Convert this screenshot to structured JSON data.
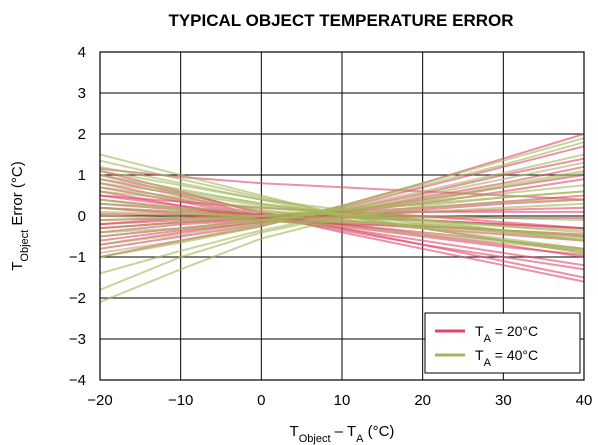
{
  "chart_data": {
    "type": "line",
    "title": "TYPICAL OBJECT TEMPERATURE ERROR",
    "xlabel": {
      "main": "T",
      "sub1": "Object",
      "mid": " – T",
      "sub2": "A",
      "unit": " (°C)"
    },
    "ylabel": {
      "main": "T",
      "sub": "Object",
      "rest": " Error (°C)"
    },
    "xlim": [
      -20,
      40
    ],
    "ylim": [
      -4,
      4
    ],
    "xticks": [
      "−20",
      "−10",
      "0",
      "10",
      "20",
      "30",
      "40"
    ],
    "yticks": [
      "−4",
      "−3",
      "−2",
      "−1",
      "0",
      "1",
      "2",
      "3",
      "4"
    ],
    "grid": true,
    "legend_position": "bottom-right",
    "colors": {
      "ta20": "#e0476b",
      "ta40": "#a3b75a"
    },
    "legend": [
      {
        "key": "ta20",
        "main": "T",
        "sub": "A",
        "rest": " = 20°C"
      },
      {
        "key": "ta40",
        "main": "T",
        "sub": "A",
        "rest": " = 40°C"
      }
    ],
    "x": [
      -20,
      -10,
      0,
      10,
      20,
      30,
      40
    ],
    "series_groups": [
      {
        "key": "ta20",
        "lines": [
          [
            1.0,
            0.55,
            0.1,
            -0.3,
            -0.7,
            -1.1,
            -1.5
          ],
          [
            1.1,
            0.6,
            0.05,
            -0.4,
            -0.8,
            -1.2,
            -1.6
          ],
          [
            0.9,
            0.5,
            0.0,
            -0.35,
            -0.7,
            -1.0,
            -1.3
          ],
          [
            0.8,
            0.4,
            0.0,
            -0.3,
            -0.6,
            -0.9,
            -1.2
          ],
          [
            0.7,
            0.35,
            -0.05,
            -0.2,
            -0.45,
            -0.7,
            -1.0
          ],
          [
            0.6,
            0.25,
            -0.1,
            -0.25,
            -0.5,
            -0.75,
            -0.95
          ],
          [
            0.5,
            0.25,
            0.0,
            -0.2,
            -0.4,
            -0.6,
            -0.8
          ],
          [
            0.4,
            0.2,
            0.0,
            -0.15,
            -0.3,
            -0.45,
            -0.6
          ],
          [
            0.3,
            0.15,
            0.0,
            -0.1,
            -0.25,
            -0.35,
            -0.5
          ],
          [
            0.2,
            0.1,
            0.0,
            -0.05,
            -0.1,
            -0.2,
            -0.3
          ],
          [
            0.05,
            0.02,
            0.0,
            -0.02,
            -0.03,
            -0.05,
            -0.05
          ],
          [
            -0.1,
            -0.05,
            0.0,
            0.05,
            0.1,
            0.15,
            0.2
          ],
          [
            -0.2,
            -0.1,
            0.0,
            0.1,
            0.2,
            0.35,
            0.5
          ],
          [
            -0.3,
            -0.15,
            -0.05,
            0.05,
            0.15,
            0.3,
            0.4
          ],
          [
            -0.4,
            -0.2,
            -0.1,
            0.1,
            0.3,
            0.6,
            0.9
          ],
          [
            -0.5,
            -0.3,
            -0.1,
            0.1,
            0.4,
            0.7,
            1.0
          ],
          [
            -0.6,
            -0.35,
            -0.15,
            0.1,
            0.45,
            0.8,
            1.2
          ],
          [
            -0.7,
            -0.4,
            -0.15,
            0.15,
            0.55,
            1.0,
            1.4
          ],
          [
            -0.8,
            -0.5,
            -0.2,
            0.2,
            0.7,
            1.2,
            1.7
          ],
          [
            -1.0,
            -0.6,
            -0.25,
            0.25,
            0.8,
            1.4,
            2.0
          ],
          [
            0.5,
            0.35,
            0.2,
            0.1,
            0.0,
            -0.15,
            -0.3
          ],
          [
            -0.2,
            -0.05,
            0.05,
            0.0,
            -0.1,
            -0.2,
            -0.3
          ],
          [
            0.2,
            0.05,
            -0.1,
            -0.2,
            -0.25,
            -0.35,
            -0.45
          ],
          [
            1.15,
            0.95,
            0.8,
            0.7,
            0.6,
            0.5,
            0.4
          ],
          [
            -0.3,
            -0.15,
            -0.05,
            0.0,
            0.1,
            0.1,
            0.1
          ]
        ]
      },
      {
        "key": "ta40",
        "lines": [
          [
            1.5,
            1.0,
            0.5,
            0.0,
            -0.3,
            -0.6,
            -0.9
          ],
          [
            1.35,
            0.9,
            0.45,
            0.05,
            -0.3,
            -0.6,
            -0.9
          ],
          [
            1.2,
            0.8,
            0.4,
            0.0,
            -0.3,
            -0.6,
            -0.85
          ],
          [
            1.0,
            0.65,
            0.3,
            0.05,
            -0.2,
            -0.4,
            -0.6
          ],
          [
            0.9,
            0.6,
            0.3,
            0.05,
            -0.15,
            -0.35,
            -0.5
          ],
          [
            0.8,
            0.55,
            0.25,
            0.05,
            -0.1,
            -0.25,
            -0.4
          ],
          [
            0.6,
            0.4,
            0.2,
            0.05,
            -0.1,
            -0.25,
            -0.35
          ],
          [
            0.3,
            0.2,
            0.1,
            0.05,
            0.0,
            -0.05,
            -0.1
          ],
          [
            0.1,
            0.05,
            0.0,
            0.05,
            0.1,
            0.2,
            0.3
          ],
          [
            -0.1,
            -0.05,
            0.0,
            0.15,
            0.35,
            0.55,
            0.75
          ],
          [
            -0.4,
            -0.3,
            -0.1,
            0.1,
            0.4,
            0.75,
            1.1
          ],
          [
            -0.5,
            -0.3,
            -0.1,
            0.15,
            0.5,
            0.9,
            1.3
          ],
          [
            -0.7,
            -0.45,
            -0.15,
            0.2,
            0.6,
            1.05,
            1.5
          ],
          [
            -0.9,
            -0.6,
            -0.2,
            0.25,
            0.75,
            1.25,
            1.8
          ],
          [
            -1.0,
            -0.65,
            -0.25,
            0.25,
            0.8,
            1.35,
            1.9
          ],
          [
            -1.8,
            -1.0,
            -0.4,
            0.0,
            0.2,
            0.35,
            0.4
          ],
          [
            -2.1,
            -1.3,
            -0.55,
            -0.05,
            0.25,
            0.45,
            0.6
          ],
          [
            -1.4,
            -0.85,
            -0.35,
            0.05,
            0.35,
            0.7,
            1.05
          ],
          [
            0.0,
            -0.05,
            -0.1,
            -0.15,
            -0.2,
            -0.35,
            -0.5
          ],
          [
            0.4,
            0.15,
            -0.1,
            -0.25,
            -0.45,
            -0.65,
            -0.85
          ],
          [
            0.2,
            0.1,
            0.0,
            -0.1,
            -0.25,
            -0.4,
            -0.55
          ],
          [
            1.1,
            0.75,
            0.4,
            0.15,
            -0.1,
            -0.35,
            -0.6
          ],
          [
            0.7,
            0.45,
            0.15,
            -0.1,
            -0.3,
            -0.55,
            -0.8
          ],
          [
            -0.3,
            -0.15,
            0.0,
            0.15,
            0.3,
            0.45,
            0.6
          ]
        ]
      }
    ]
  }
}
